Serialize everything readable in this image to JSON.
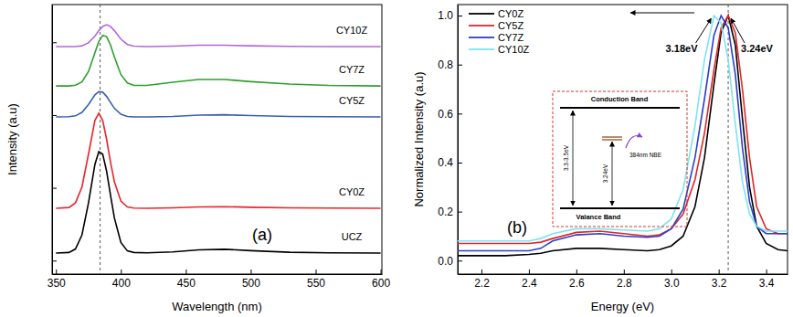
{
  "chart_data": [
    {
      "type": "line",
      "title": "(a)",
      "xlabel": "Wavelength (nm)",
      "ylabel": "Intensity (a.u)",
      "x": [
        350,
        360,
        365,
        370,
        375,
        380,
        383,
        386,
        389,
        392,
        395,
        400,
        405,
        410,
        420,
        440,
        460,
        480,
        500,
        530,
        560,
        600
      ],
      "series": [
        {
          "name": "UCZ",
          "color": "#000000",
          "values": [
            0.078,
            0.08,
            0.093,
            0.145,
            0.263,
            0.407,
            0.454,
            0.445,
            0.382,
            0.293,
            0.208,
            0.117,
            0.086,
            0.08,
            0.079,
            0.082,
            0.09,
            0.092,
            0.087,
            0.081,
            0.079,
            0.078
          ]
        },
        {
          "name": "CY0Z",
          "color": "#e8252a",
          "values": [
            0.244,
            0.247,
            0.264,
            0.323,
            0.444,
            0.57,
            0.597,
            0.57,
            0.5,
            0.416,
            0.342,
            0.271,
            0.249,
            0.245,
            0.244,
            0.246,
            0.249,
            0.25,
            0.248,
            0.246,
            0.245,
            0.244
          ]
        },
        {
          "name": "CY5Z",
          "color": "#3a5fb0",
          "values": [
            0.583,
            0.584,
            0.587,
            0.6,
            0.629,
            0.665,
            0.677,
            0.675,
            0.659,
            0.637,
            0.615,
            0.593,
            0.585,
            0.583,
            0.583,
            0.585,
            0.59,
            0.591,
            0.588,
            0.585,
            0.584,
            0.583
          ]
        },
        {
          "name": "CY7Z",
          "color": "#2ca02c",
          "values": [
            0.698,
            0.698,
            0.701,
            0.713,
            0.751,
            0.821,
            0.863,
            0.886,
            0.881,
            0.85,
            0.806,
            0.74,
            0.709,
            0.7,
            0.7,
            0.712,
            0.722,
            0.722,
            0.714,
            0.705,
            0.7,
            0.698
          ]
        },
        {
          "name": "CY10Z",
          "color": "#b366e0",
          "values": [
            0.844,
            0.844,
            0.844,
            0.847,
            0.858,
            0.883,
            0.903,
            0.919,
            0.925,
            0.919,
            0.903,
            0.872,
            0.852,
            0.846,
            0.844,
            0.846,
            0.849,
            0.849,
            0.847,
            0.845,
            0.844,
            0.844
          ]
        }
      ],
      "xlim": [
        347,
        601
      ],
      "ylim": [
        0,
        1
      ],
      "xticks": [
        350,
        400,
        450,
        500,
        550,
        600
      ],
      "yticks": [
        0.05,
        0.32,
        0.59,
        0.86
      ],
      "tick_labels": "x",
      "reference_x": 384
    },
    {
      "type": "line",
      "title": "(b)",
      "xlabel": "Energy (eV)",
      "ylabel": "Normalized Intensity (a.u)",
      "x": [
        2.1,
        2.2,
        2.3,
        2.4,
        2.45,
        2.5,
        2.6,
        2.7,
        2.8,
        2.9,
        2.95,
        3.0,
        3.05,
        3.1,
        3.14,
        3.18,
        3.21,
        3.24,
        3.27,
        3.3,
        3.33,
        3.36,
        3.4,
        3.45,
        3.49
      ],
      "series": [
        {
          "name": "CY0Z",
          "color": "#000000",
          "values": [
            0.02,
            0.02,
            0.02,
            0.025,
            0.03,
            0.04,
            0.05,
            0.05,
            0.045,
            0.04,
            0.045,
            0.06,
            0.1,
            0.22,
            0.42,
            0.72,
            0.93,
            1.0,
            0.88,
            0.58,
            0.3,
            0.14,
            0.07,
            0.045,
            0.04
          ]
        },
        {
          "name": "CY5Z",
          "color": "#e0262a",
          "values": [
            0.07,
            0.07,
            0.07,
            0.07,
            0.075,
            0.09,
            0.115,
            0.12,
            0.11,
            0.1,
            0.105,
            0.13,
            0.19,
            0.33,
            0.52,
            0.78,
            0.95,
            1.0,
            0.93,
            0.7,
            0.42,
            0.22,
            0.13,
            0.11,
            0.11
          ]
        },
        {
          "name": "CY7Z",
          "color": "#2b3fc9",
          "values": [
            0.04,
            0.04,
            0.04,
            0.04,
            0.05,
            0.08,
            0.105,
            0.11,
            0.1,
            0.095,
            0.1,
            0.13,
            0.21,
            0.42,
            0.66,
            0.92,
            1.0,
            0.95,
            0.76,
            0.46,
            0.24,
            0.14,
            0.11,
            0.11,
            0.11
          ]
        },
        {
          "name": "CY10Z",
          "color": "#7fe3f2",
          "values": [
            0.08,
            0.08,
            0.08,
            0.08,
            0.09,
            0.11,
            0.13,
            0.13,
            0.125,
            0.12,
            0.13,
            0.17,
            0.29,
            0.55,
            0.82,
            1.0,
            0.97,
            0.82,
            0.56,
            0.32,
            0.19,
            0.14,
            0.12,
            0.12,
            0.12
          ]
        }
      ],
      "xlim": [
        2.1,
        3.49
      ],
      "ylim": [
        -0.055,
        1.045
      ],
      "xticks": [
        2.2,
        2.4,
        2.6,
        2.8,
        {
          "value": 3,
          "label": "3.0"
        },
        3.2,
        3.4
      ],
      "yticks": [
        {
          "value": 0,
          "label": "0.0"
        },
        0.2,
        0.4,
        0.6,
        0.8,
        {
          "value": 1,
          "label": "1.0"
        }
      ],
      "legend": "upper left",
      "reference_x": 3.24,
      "annotations": [
        {
          "text": "3.18eV",
          "x": 3.18,
          "y": 1.0
        },
        {
          "text": "3.24eV",
          "x": 3.24,
          "y": 1.0
        }
      ],
      "inset": {
        "top_label": "Conduction Band",
        "bottom_label": "Valance Band",
        "gap_label": "3.3-3.5eV",
        "level_label": "3.24eV",
        "emission_label": "384nm NBE"
      }
    }
  ]
}
